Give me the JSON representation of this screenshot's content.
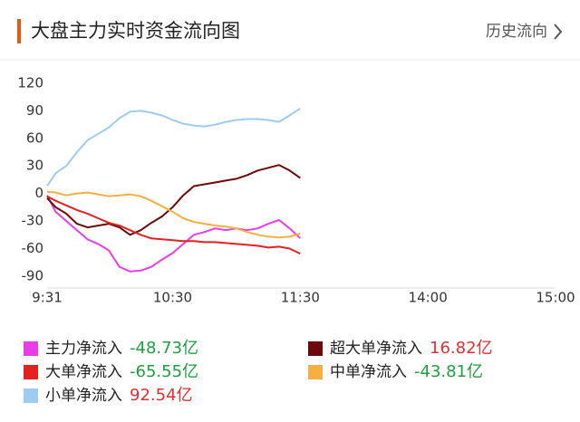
{
  "header": {
    "title": "大盘主力实时资金流向图",
    "link": "历史流向"
  },
  "chart_data": {
    "type": "line",
    "x": [
      1,
      5,
      10,
      15,
      20,
      25,
      30,
      35,
      40,
      45,
      50,
      55,
      60,
      65,
      70,
      75,
      80,
      85,
      90,
      95,
      100,
      105,
      110,
      115,
      120
    ],
    "xlim": [
      1,
      240
    ],
    "xticks": [
      {
        "value": 1,
        "label": "9:31"
      },
      {
        "value": 60,
        "label": "10:30"
      },
      {
        "value": 120,
        "label": "11:30"
      },
      {
        "value": 180,
        "label": "14:00"
      },
      {
        "value": 240,
        "label": "15:00"
      }
    ],
    "ylim": [
      -100,
      120
    ],
    "yticks": [
      120,
      90,
      60,
      30,
      0,
      -30,
      -60,
      -90
    ],
    "grid": false,
    "series": [
      {
        "name": "主力净流入",
        "color": "#e83ee8",
        "legend_value": "-48.73亿",
        "values": [
          -2,
          -20,
          -30,
          -40,
          -50,
          -55,
          -62,
          -80,
          -85,
          -84,
          -80,
          -72,
          -65,
          -55,
          -45,
          -42,
          -38,
          -40,
          -38,
          -40,
          -38,
          -33,
          -29,
          -38,
          -48.73
        ]
      },
      {
        "name": "超大单净流入",
        "color": "#6b0a0a",
        "legend_value": "16.82亿",
        "values": [
          -5,
          -15,
          -22,
          -33,
          -37,
          -35,
          -33,
          -37,
          -45,
          -40,
          -32,
          -25,
          -15,
          -2,
          8,
          10,
          12,
          14,
          16,
          20,
          25,
          28,
          31,
          25,
          16.82
        ]
      },
      {
        "name": "大单净流入",
        "color": "#e42020",
        "legend_value": "-65.55亿",
        "values": [
          -3,
          -8,
          -13,
          -18,
          -22,
          -27,
          -32,
          -35,
          -40,
          -45,
          -49,
          -50,
          -51,
          -52,
          -52,
          -53,
          -53,
          -54,
          -55,
          -56,
          -57,
          -59,
          -58,
          -60,
          -65.55
        ]
      },
      {
        "name": "中单净流入",
        "color": "#f5b041",
        "legend_value": "-43.81亿",
        "values": [
          2,
          1,
          -2,
          0,
          1,
          -1,
          -3,
          -2,
          -1,
          -3,
          -8,
          -14,
          -20,
          -27,
          -31,
          -33,
          -35,
          -36,
          -38,
          -42,
          -45,
          -47,
          -48,
          -47,
          -43.81
        ]
      },
      {
        "name": "小单净流入",
        "color": "#9ecbf0",
        "legend_value": "92.54亿",
        "values": [
          8,
          22,
          30,
          45,
          58,
          65,
          72,
          82,
          89,
          90,
          88,
          85,
          80,
          76,
          74,
          73,
          75,
          78,
          80,
          81,
          81,
          80,
          78,
          85,
          92.54
        ]
      }
    ]
  }
}
